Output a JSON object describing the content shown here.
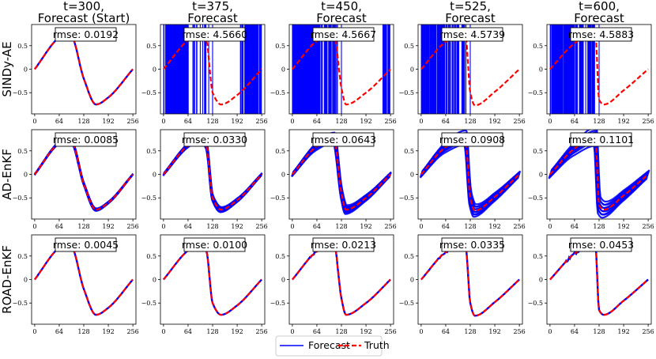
{
  "colors": {
    "forecast": "#0000ff",
    "truth": "#ff0000",
    "frame": "#000000"
  },
  "legend": {
    "placement": "bottom-center",
    "forecast_label": "Forecast",
    "truth_label": "Truth"
  },
  "columns": [
    [
      "t=300,",
      "Forecast (Start)"
    ],
    [
      "t=375,",
      "Forecast"
    ],
    [
      "t=450,",
      "Forecast"
    ],
    [
      "t=525,",
      "Forecast"
    ],
    [
      "t=600,",
      "Forecast"
    ]
  ],
  "rows": [
    "SINDy-AE",
    "AD-EnKF",
    "ROAD-EnKF"
  ],
  "chart_data": {
    "type": "line",
    "layout": "3x5 grid of subplots",
    "x_ticks": [
      0,
      64,
      128,
      192,
      256
    ],
    "y_ticks": [
      0.5,
      0.0,
      -0.5
    ],
    "y_tick_labels": [
      "0.5",
      "0",
      "−0.5"
    ],
    "xlim": [
      -8,
      264
    ],
    "ylim": [
      -0.95,
      0.95
    ],
    "series": [
      {
        "name": "Truth",
        "style": "dashed",
        "color": "#ff0000"
      },
      {
        "name": "Forecast",
        "style": "solid",
        "color": "#0000ff"
      }
    ],
    "truth_waveform": {
      "description": "steepening wave; rises from 0 at x=0 to peak ~0.76, drops sharply to min ~-0.75, then rises to ~0 at x=256",
      "keypoints_by_time": [
        {
          "t": 300,
          "points": [
            [
              0,
              0.0
            ],
            [
              64,
              0.68
            ],
            [
              80,
              0.75
            ],
            [
              96,
              0.7
            ],
            [
              128,
              -0.2
            ],
            [
              160,
              -0.75
            ],
            [
              192,
              -0.6
            ],
            [
              256,
              0.0
            ]
          ]
        },
        {
          "t": 375,
          "points": [
            [
              0,
              0.0
            ],
            [
              64,
              0.62
            ],
            [
              96,
              0.78
            ],
            [
              112,
              0.6
            ],
            [
              128,
              -0.5
            ],
            [
              150,
              -0.75
            ],
            [
              192,
              -0.55
            ],
            [
              256,
              0.0
            ]
          ]
        },
        {
          "t": 450,
          "points": [
            [
              0,
              0.0
            ],
            [
              64,
              0.6
            ],
            [
              108,
              0.78
            ],
            [
              128,
              -0.4
            ],
            [
              140,
              -0.75
            ],
            [
              192,
              -0.5
            ],
            [
              256,
              0.0
            ]
          ]
        },
        {
          "t": 525,
          "points": [
            [
              0,
              0.0
            ],
            [
              64,
              0.58
            ],
            [
              115,
              0.78
            ],
            [
              128,
              -0.5
            ],
            [
              140,
              -0.77
            ],
            [
              192,
              -0.48
            ],
            [
              256,
              0.0
            ]
          ]
        },
        {
          "t": 600,
          "points": [
            [
              0,
              0.0
            ],
            [
              64,
              0.55
            ],
            [
              118,
              0.8
            ],
            [
              128,
              -0.65
            ],
            [
              140,
              -0.75
            ],
            [
              192,
              -0.45
            ],
            [
              256,
              0.0
            ]
          ]
        }
      ]
    },
    "panels": [
      [
        {
          "rmse": "rmse: 0.0192",
          "forecast": "matches truth"
        },
        {
          "rmse": "rmse: 4.5660",
          "forecast": "diverged"
        },
        {
          "rmse": "rmse: 4.5667",
          "forecast": "diverged"
        },
        {
          "rmse": "rmse: 4.5739",
          "forecast": "diverged"
        },
        {
          "rmse": "rmse: 4.5883",
          "forecast": "diverged"
        }
      ],
      [
        {
          "rmse": "rmse: 0.0085",
          "forecast": "ensemble close to truth"
        },
        {
          "rmse": "rmse: 0.0330",
          "forecast": "ensemble spread small"
        },
        {
          "rmse": "rmse: 0.0643",
          "forecast": "ensemble spread moderate"
        },
        {
          "rmse": "rmse: 0.0908",
          "forecast": "ensemble spread large"
        },
        {
          "rmse": "rmse: 0.1101",
          "forecast": "ensemble spread largest"
        }
      ],
      [
        {
          "rmse": "rmse: 0.0045",
          "forecast": "matches truth"
        },
        {
          "rmse": "rmse: 0.0100",
          "forecast": "matches truth"
        },
        {
          "rmse": "rmse: 0.0213",
          "forecast": "slight noise"
        },
        {
          "rmse": "rmse: 0.0335",
          "forecast": "slight noise"
        },
        {
          "rmse": "rmse: 0.0453",
          "forecast": "noise near peak"
        }
      ]
    ]
  }
}
